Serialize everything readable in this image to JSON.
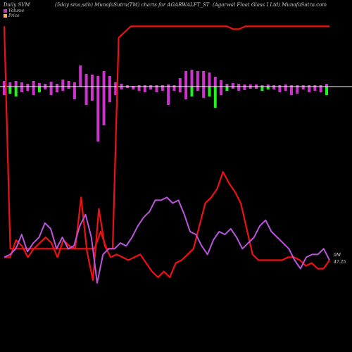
{
  "header": {
    "left": "Daily SVM",
    "middle": "(5day sma,sdh) MunafaSutra(TM) charts for AGARWALFT_ST",
    "right": "(Agarwal Float Glass I Ltd) MunafaSutra.com"
  },
  "legend": [
    {
      "label": "Volume",
      "color": "#cc33cc"
    },
    {
      "label": "Price",
      "color": "#ffaa66"
    }
  ],
  "chart_data": {
    "type": "line",
    "right_labels": {
      "top": "0M",
      "bottom": "47.25"
    },
    "colors": {
      "bull": "#cc33cc",
      "bear": "#22ee22",
      "red_line": "#ee1111",
      "purple_line": "#bb55dd",
      "axis": "#ffffff"
    },
    "histogram": [
      {
        "up": 8,
        "down": 12,
        "bull": true
      },
      {
        "up": 6,
        "down": 10,
        "bull": false
      },
      {
        "up": 8,
        "down": 14,
        "bull": false
      },
      {
        "up": 6,
        "down": 8,
        "bull": true
      },
      {
        "up": 4,
        "down": 6,
        "bull": true
      },
      {
        "up": 8,
        "down": 12,
        "bull": true
      },
      {
        "up": 5,
        "down": 8,
        "bull": false
      },
      {
        "up": 4,
        "down": 4,
        "bull": true
      },
      {
        "up": 7,
        "down": 12,
        "bull": true
      },
      {
        "up": 4,
        "down": 8,
        "bull": true
      },
      {
        "up": 10,
        "down": 6,
        "bull": true
      },
      {
        "up": 8,
        "down": 3,
        "bull": true
      },
      {
        "up": 6,
        "down": 18,
        "bull": true
      },
      {
        "up": 30,
        "down": 0,
        "bull": true
      },
      {
        "up": 18,
        "down": 26,
        "bull": true
      },
      {
        "up": 17,
        "down": 20,
        "bull": true
      },
      {
        "up": 15,
        "down": 78,
        "bull": true
      },
      {
        "up": 22,
        "down": 55,
        "bull": true
      },
      {
        "up": 15,
        "down": 22,
        "bull": true
      },
      {
        "up": 6,
        "down": 12,
        "bull": true
      },
      {
        "up": 4,
        "down": 4,
        "bull": true
      },
      {
        "up": 2,
        "down": 2,
        "bull": true
      },
      {
        "up": 1,
        "down": 4,
        "bull": true
      },
      {
        "up": 2,
        "down": 6,
        "bull": true
      },
      {
        "up": 2,
        "down": 8,
        "bull": true
      },
      {
        "up": 2,
        "down": 4,
        "bull": true
      },
      {
        "up": 2,
        "down": 8,
        "bull": true
      },
      {
        "up": 2,
        "down": 6,
        "bull": true
      },
      {
        "up": 3,
        "down": 26,
        "bull": true
      },
      {
        "up": 2,
        "down": 6,
        "bull": true
      },
      {
        "up": 12,
        "down": 8,
        "bull": true
      },
      {
        "up": 22,
        "down": 18,
        "bull": true
      },
      {
        "up": 24,
        "down": 14,
        "bull": false
      },
      {
        "up": 22,
        "down": 6,
        "bull": true
      },
      {
        "up": 22,
        "down": 16,
        "bull": true
      },
      {
        "up": 20,
        "down": 14,
        "bull": false
      },
      {
        "up": 14,
        "down": 30,
        "bull": false
      },
      {
        "up": 9,
        "down": 12,
        "bull": true
      },
      {
        "up": 4,
        "down": 6,
        "bull": false
      },
      {
        "up": 5,
        "down": 3,
        "bull": true
      },
      {
        "up": 4,
        "down": 6,
        "bull": true
      },
      {
        "up": 3,
        "down": 5,
        "bull": true
      },
      {
        "up": 3,
        "down": 3,
        "bull": true
      },
      {
        "up": 3,
        "down": 3,
        "bull": true
      },
      {
        "up": 2,
        "down": 6,
        "bull": false
      },
      {
        "up": 3,
        "down": 4,
        "bull": false
      },
      {
        "up": 2,
        "down": 4,
        "bull": true
      },
      {
        "up": 2,
        "down": 8,
        "bull": true
      },
      {
        "up": 3,
        "down": 6,
        "bull": true
      },
      {
        "up": 2,
        "down": 12,
        "bull": true
      },
      {
        "up": 2,
        "down": 10,
        "bull": true
      },
      {
        "up": 2,
        "down": 4,
        "bull": true
      },
      {
        "up": 2,
        "down": 8,
        "bull": true
      },
      {
        "up": 2,
        "down": 6,
        "bull": true
      },
      {
        "up": 2,
        "down": 8,
        "bull": true
      },
      {
        "up": 4,
        "down": 12,
        "bull": false
      }
    ],
    "series": [
      {
        "values": [
          92,
          14,
          14,
          14,
          14,
          14,
          14,
          14,
          14,
          14,
          14,
          14,
          14,
          14,
          14,
          14,
          20,
          14,
          14,
          88,
          90,
          92,
          92,
          92,
          92,
          92,
          92,
          92,
          92,
          92,
          92,
          92,
          92,
          92,
          92,
          92,
          92,
          92,
          91,
          91,
          92,
          92,
          92,
          92,
          92,
          92,
          92,
          92,
          92,
          92,
          92,
          92,
          92,
          92,
          92
        ]
      },
      {
        "values": [
          11,
          11,
          17,
          15,
          11,
          14,
          16,
          18,
          16,
          11,
          17,
          15,
          14,
          32,
          13,
          3,
          28,
          15,
          11,
          12,
          11,
          10,
          11,
          12,
          9,
          6,
          4,
          6,
          4,
          9,
          10,
          12,
          14,
          22,
          30,
          32,
          35,
          41,
          37,
          34,
          30,
          21,
          12,
          10,
          10,
          10,
          10,
          10,
          11,
          11,
          10,
          8,
          9,
          7,
          7,
          10
        ]
      },
      {
        "values": [
          11,
          12,
          14,
          19,
          13,
          16,
          18,
          23,
          21,
          14,
          18,
          14,
          15,
          22,
          26,
          18,
          2,
          12,
          14,
          14,
          16,
          15,
          18,
          22,
          25,
          27,
          31,
          31,
          32,
          30,
          31,
          26,
          20,
          19,
          15,
          12,
          17,
          20,
          19,
          21,
          18,
          14,
          16,
          18,
          22,
          24,
          20,
          18,
          16,
          14,
          10,
          7,
          11,
          12,
          12,
          14,
          10
        ]
      }
    ]
  }
}
